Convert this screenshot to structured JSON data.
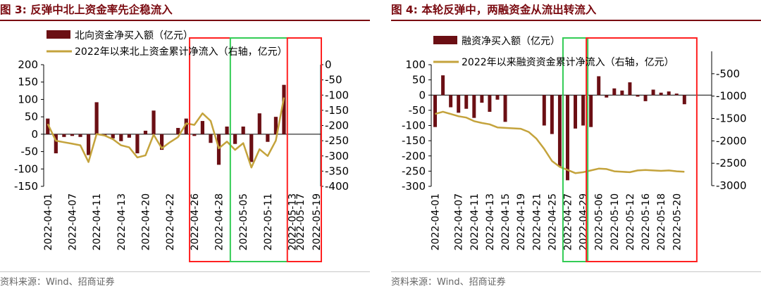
{
  "charts": [
    {
      "id": "p1",
      "title_prefix": "图 3:",
      "title_text": "反弹中北上资金率先企稳流入",
      "source": "资料来源：Wind、招商证券",
      "bar_color": "#6b0f14",
      "line_color": "#c4a33c",
      "box_colors": {
        "red": "#ff2020",
        "green": "#33cc55"
      },
      "chart_data": {
        "type": "bar+line",
        "title": "反弹中北上资金率先企稳流入",
        "categories_count": 34,
        "tick_labels": [
          "2022-04-01",
          "2022-04-07",
          "2022-04-11",
          "2022-04-13",
          "2022-04-20",
          "2022-04-22",
          "2022-04-26",
          "2022-04-28",
          "2022-05-05",
          "2022-05-11",
          "2022-05-13",
          "2022-05-17",
          "2022-05-19"
        ],
        "tick_index": [
          0,
          3,
          6,
          9,
          12,
          15,
          18,
          21,
          24,
          27,
          30,
          31,
          33
        ],
        "series": [
          {
            "name": "北向资金净买入额（亿元）",
            "type": "bar",
            "axis": "left",
            "values": [
              45,
              -55,
              -8,
              -5,
              -8,
              -60,
              92,
              -5,
              -12,
              -20,
              -10,
              -55,
              10,
              68,
              -45,
              0,
              18,
              45,
              -5,
              38,
              -25,
              -88,
              22,
              -28,
              22,
              -80,
              60,
              -22,
              50,
              142,
              0,
              0,
              0,
              0
            ]
          },
          {
            "name": "2022年以来北上资金累计净流入（右轴，亿元）",
            "type": "line",
            "axis": "right",
            "values": [
              -195,
              -250,
              -255,
              -260,
              -265,
              -320,
              -228,
              -233,
              -245,
              -265,
              -272,
              -305,
              -298,
              -230,
              -275,
              -255,
              -238,
              -193,
              -198,
              -160,
              -185,
              -275,
              -253,
              -280,
              -258,
              -338,
              -278,
              -300,
              -250,
              -108,
              null,
              null,
              null,
              null
            ]
          }
        ],
        "y_left": {
          "min": -150,
          "max": 200,
          "ticks": [
            200,
            150,
            100,
            50,
            0,
            -50,
            -100,
            -150
          ]
        },
        "y_right": {
          "min": -400,
          "max": 0,
          "ticks": [
            0,
            -50,
            -100,
            -150,
            -200,
            -250,
            -300,
            -350,
            -400
          ]
        },
        "boxes": [
          {
            "color": "red",
            "from": 18,
            "to": 33
          },
          {
            "color": "green",
            "from": 23,
            "to": 33
          },
          {
            "color": "red",
            "from": 30,
            "to": 33
          }
        ]
      }
    },
    {
      "id": "p2",
      "title_prefix": "图 4:",
      "title_text": "本轮反弹中，两融资金从流出转流入",
      "source": "资料来源：Wind、招商证券",
      "bar_color": "#6b0f14",
      "line_color": "#c4a33c",
      "box_colors": {
        "red": "#ff2020",
        "green": "#33cc55"
      },
      "chart_data": {
        "type": "bar+line",
        "title": "本轮反弹中，两融资金从流出转流入",
        "categories_count": 36,
        "tick_labels": [
          "2022-04-01",
          "2022-04-07",
          "2022-04-11",
          "2022-04-13",
          "2022-04-15",
          "2022-04-19",
          "2022-04-21",
          "2022-04-25",
          "2022-04-27",
          "2022-04-29",
          "2022-05-06",
          "2022-05-10",
          "2022-05-12",
          "2022-05-16",
          "2022-05-18",
          "2022-05-20"
        ],
        "tick_index": [
          0,
          3,
          5,
          7,
          9,
          11,
          13,
          15,
          17,
          19,
          21,
          23,
          25,
          27,
          29,
          31
        ],
        "series": [
          {
            "name": "融资净买入额（亿元）",
            "type": "bar",
            "axis": "left",
            "values": [
              -105,
              65,
              -40,
              -58,
              -45,
              -75,
              -25,
              -55,
              -15,
              -88,
              0,
              0,
              0,
              0,
              -100,
              -128,
              -235,
              -280,
              -110,
              -100,
              -105,
              62,
              -8,
              22,
              15,
              42,
              -5,
              -20,
              18,
              8,
              12,
              5,
              -30,
              0,
              0,
              0
            ]
          },
          {
            "name": "2022年以来融资资金累计净流入（右轴，亿元）",
            "type": "line",
            "axis": "right",
            "values": [
              -1400,
              -1350,
              -1400,
              -1450,
              -1480,
              -1560,
              -1600,
              -1630,
              -1700,
              -1710,
              -1720,
              -1730,
              -1800,
              -1950,
              -2180,
              -2450,
              -2580,
              -2650,
              -2720,
              -2700,
              -2660,
              -2620,
              -2630,
              -2680,
              -2690,
              -2700,
              -2660,
              -2650,
              -2660,
              -2670,
              -2660,
              -2680,
              -2690,
              null,
              null,
              null
            ]
          }
        ],
        "y_left": {
          "min": -300,
          "max": 100,
          "ticks": [
            100,
            50,
            0,
            -50,
            -100,
            -150,
            -200,
            -250,
            -300
          ]
        },
        "y_right": {
          "min": -3000,
          "max": 0,
          "ticks": [
            -500,
            -1000,
            -1500,
            -2000,
            -2500,
            -3000
          ]
        },
        "boxes": [
          {
            "color": "green",
            "from": 17,
            "to": 19
          },
          {
            "color": "red",
            "from": 20,
            "to": 33
          }
        ]
      }
    }
  ]
}
